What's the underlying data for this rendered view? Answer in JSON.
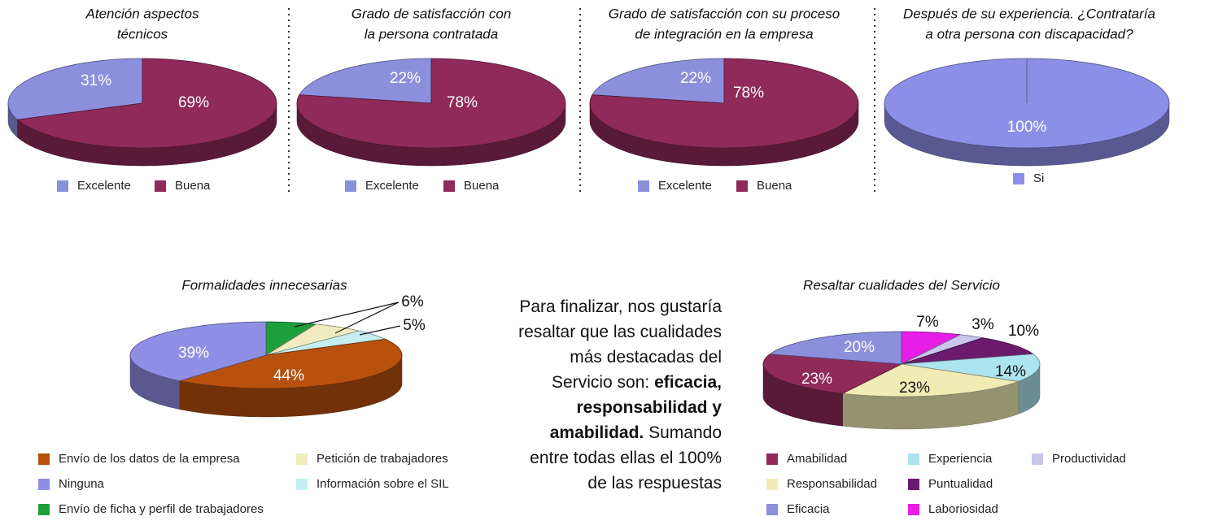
{
  "chart_data": [
    {
      "type": "pie",
      "title": [
        "Atención aspectos",
        "técnicos"
      ],
      "categories": [
        "Excelente",
        "Buena"
      ],
      "values": [
        31,
        69
      ],
      "value_labels": [
        "31%",
        "69%"
      ],
      "colors": [
        "#8c8fdb",
        "#8f2a5a"
      ]
    },
    {
      "type": "pie",
      "title": [
        "Grado de satisfacción con",
        "la persona contratada"
      ],
      "categories": [
        "Excelente",
        "Buena"
      ],
      "values": [
        22,
        78
      ],
      "value_labels": [
        "22%",
        "78%"
      ],
      "colors": [
        "#8c8fdb",
        "#8f2a5a"
      ]
    },
    {
      "type": "pie",
      "title": [
        "Grado de satisfacción con su proceso",
        "de integración en la empresa"
      ],
      "categories": [
        "Excelente",
        "Buena"
      ],
      "values": [
        22,
        78
      ],
      "value_labels": [
        "22%",
        "78%"
      ],
      "colors": [
        "#8c8fdb",
        "#8f2a5a"
      ]
    },
    {
      "type": "pie",
      "title": [
        "Después de su experiencia. ¿Contrataría",
        "a otra persona con discapacidad?"
      ],
      "categories": [
        "Si"
      ],
      "values": [
        100
      ],
      "value_labels": [
        "100%"
      ],
      "colors": [
        "#8c8fe8"
      ]
    },
    {
      "type": "pie",
      "title": [
        "Formalidades innecesarias"
      ],
      "categories": [
        "Envío de ficha y perfil de trabajadores",
        "Petición de trabajadores",
        "Información sobre el SIL",
        "Envío de los datos de la empresa",
        "Ninguna"
      ],
      "values": [
        6,
        6,
        5,
        44,
        39
      ],
      "value_labels": [
        "6%",
        null,
        "5%",
        "44%",
        "39%"
      ],
      "colors": [
        "#1f9e3c",
        "#f1ecc0",
        "#c4eef0",
        "#b8500e",
        "#8f8fe6"
      ]
    },
    {
      "type": "pie",
      "title": [
        "Resaltar cualidades del Servicio"
      ],
      "categories": [
        "Laboriosidad",
        "Productividad",
        "Puntualidad",
        "Experiencia",
        "Responsabilidad",
        "Amabilidad",
        "Eficacia"
      ],
      "values": [
        7,
        3,
        10,
        14,
        23,
        23,
        20
      ],
      "value_labels": [
        "7%",
        "3%",
        "10%",
        "14%",
        "23%",
        "23%",
        "20%"
      ],
      "colors": [
        "#e61ee6",
        "#c8c6ea",
        "#6b1a6e",
        "#ace4ef",
        "#f1ecb5",
        "#8f2a5a",
        "#8c8fdb"
      ]
    }
  ],
  "text": {
    "paragraph": [
      "Para finalizar, nos gustaría resaltar que las cualidades más destacadas del Servicio son: ",
      "eficacia, responsabilidad y amabilidad.",
      " Sumando entre todas ellas el 100% de las respuestas"
    ]
  }
}
